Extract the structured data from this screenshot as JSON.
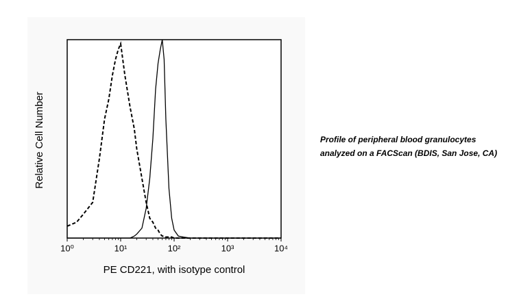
{
  "chart_data": {
    "type": "line",
    "x_label": "PE CD221, with isotype control",
    "y_label": "Relative Cell Number",
    "caption": [
      "Profile of peripheral blood granulocytes",
      "analyzed on a FACScan (BDIS, San Jose, CA)"
    ],
    "x_log": true,
    "xlim": [
      1,
      10000
    ],
    "xticks": [
      {
        "value": 1,
        "label": "10⁰"
      },
      {
        "value": 10,
        "label": "10¹"
      },
      {
        "value": 100,
        "label": "10²"
      },
      {
        "value": 1000,
        "label": "10³"
      },
      {
        "value": 10000,
        "label": "10⁴"
      }
    ],
    "ylim": [
      0,
      100
    ],
    "x": [
      1,
      1.5,
      2,
      3,
      4,
      5,
      6,
      7,
      8,
      9,
      10,
      12,
      15,
      18,
      20,
      25,
      30,
      35,
      40,
      45,
      50,
      55,
      60,
      65,
      70,
      80,
      90,
      100,
      120,
      150,
      200,
      300,
      500,
      1000,
      2000,
      5000,
      10000
    ],
    "series": [
      {
        "color": "#000000",
        "dashed": true,
        "values": [
          6,
          8,
          12,
          18,
          40,
          60,
          70,
          82,
          90,
          95,
          98,
          82,
          66,
          55,
          45,
          30,
          18,
          10,
          8,
          5,
          4,
          2,
          1,
          1,
          0.5,
          0.5,
          0.5,
          0,
          0,
          0,
          0,
          0,
          0,
          0,
          0,
          0,
          0
        ]
      },
      {
        "color": "#000000",
        "dashed": false,
        "values": [
          0,
          0,
          0,
          0,
          0,
          0,
          0,
          0,
          0,
          0,
          0,
          0,
          0,
          1,
          2,
          5,
          15,
          30,
          50,
          75,
          88,
          95,
          100,
          90,
          60,
          25,
          10,
          4,
          1,
          0.5,
          0,
          0,
          0,
          0,
          0,
          0,
          0
        ]
      }
    ]
  }
}
